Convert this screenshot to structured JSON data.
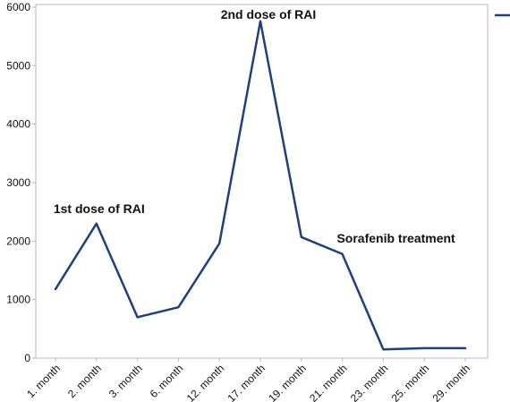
{
  "chart_data": {
    "type": "line",
    "categories": [
      "1. month",
      "2. month",
      "3. month",
      "6. month",
      "12. month",
      "17. month",
      "19. month",
      "21. month",
      "23. month",
      "25. month",
      "29. month"
    ],
    "series": [
      {
        "values": [
          1180,
          2300,
          700,
          870,
          1960,
          5760,
          2070,
          1780,
          150,
          170,
          170
        ]
      }
    ],
    "y_ticks": [
      0,
      1000,
      2000,
      3000,
      4000,
      5000,
      6000
    ],
    "ylim": [
      0,
      6000
    ],
    "grid": false,
    "annotations": [
      {
        "text": "1st dose of RAI",
        "category": "2. month"
      },
      {
        "text": "2nd dose of RAI",
        "category": "17. month"
      },
      {
        "text": "Sorafenib treatment",
        "category": "21. month"
      }
    ],
    "colors": {
      "line": "#1f3f7f",
      "axis": "#b8b8b8"
    }
  }
}
